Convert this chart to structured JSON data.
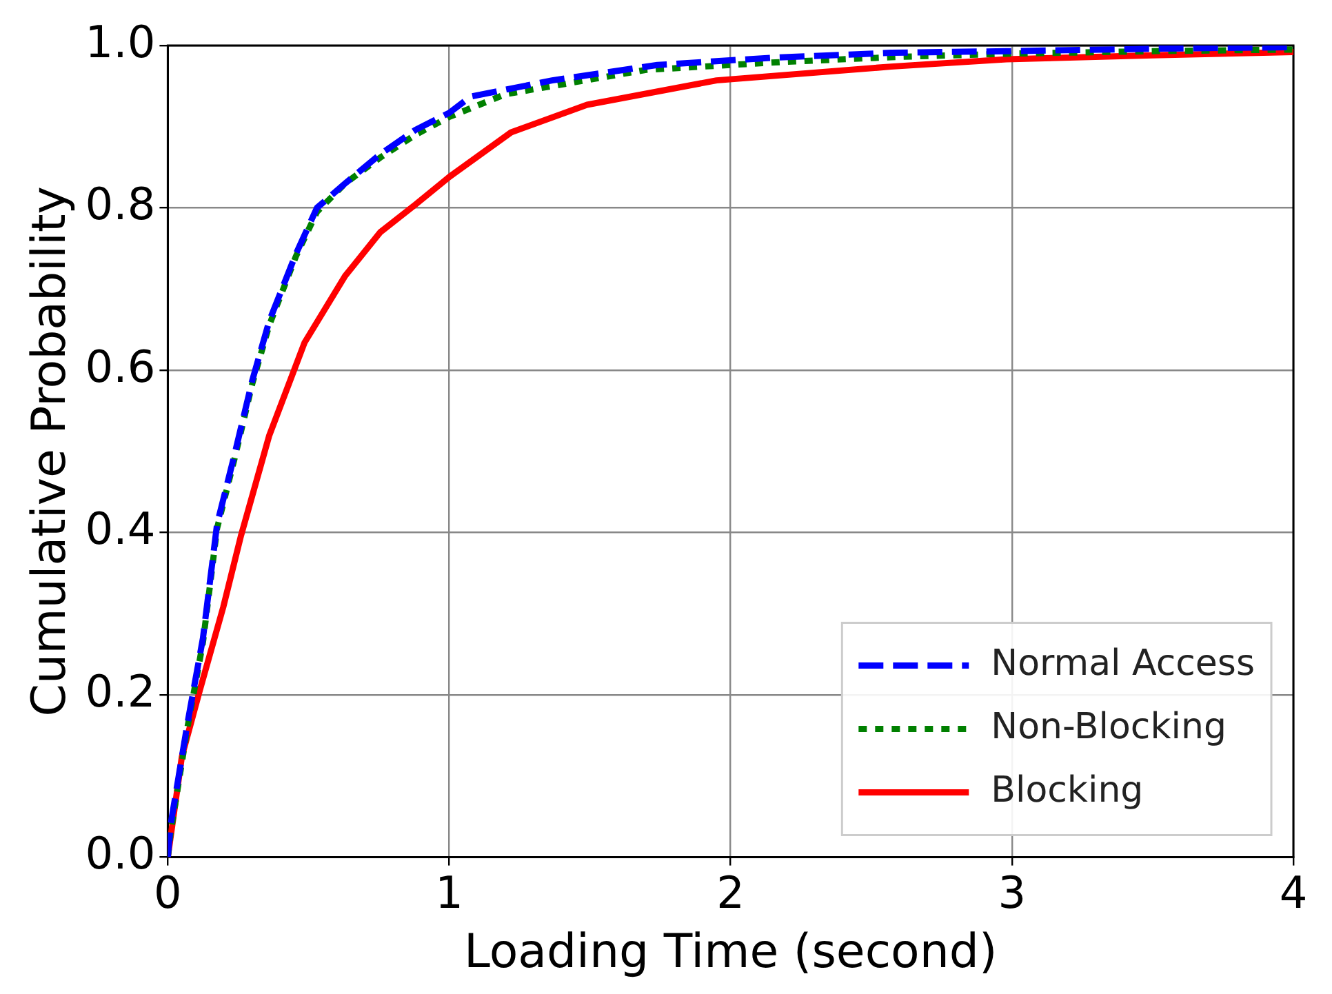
{
  "chart_data": {
    "type": "line",
    "xlabel": "Loading Time (second)",
    "ylabel": "Cumulative Probability",
    "xlim": [
      0,
      4
    ],
    "ylim": [
      0,
      1
    ],
    "xticks": [
      0,
      1,
      2,
      3,
      4
    ],
    "yticks": [
      {
        "value": 0,
        "label": "0.0"
      },
      {
        "value": 0.2,
        "label": "0.2"
      },
      {
        "value": 0.4,
        "label": "0.4"
      },
      {
        "value": 0.6,
        "label": "0.6"
      },
      {
        "value": 0.8,
        "label": "0.8"
      },
      {
        "value": 1,
        "label": "1.0"
      }
    ],
    "grid": true,
    "legend": "bottom right",
    "marker": "none",
    "series": [
      {
        "name": "Normal Access",
        "color": "#0000ff",
        "line_style": "dashed",
        "x": [
          0,
          0.01,
          0.07,
          0.125,
          0.175,
          0.24,
          0.3,
          0.36,
          0.455,
          0.53,
          0.63,
          0.755,
          0.88,
          1.0,
          1.076,
          1.366,
          1.74,
          2.15,
          2.57,
          2.98,
          3.5,
          4
        ],
        "values": [
          0,
          0.04,
          0.165,
          0.27,
          0.41,
          0.5,
          0.587,
          0.66,
          0.743,
          0.8,
          0.83,
          0.866,
          0.896,
          0.917,
          0.937,
          0.957,
          0.976,
          0.985,
          0.991,
          0.993,
          0.996,
          0.998
        ]
      },
      {
        "name": "Non-Blocking",
        "color": "#008000",
        "line_style": "dotted",
        "x": [
          0,
          0.01,
          0.07,
          0.125,
          0.175,
          0.24,
          0.3,
          0.36,
          0.455,
          0.53,
          0.63,
          0.755,
          0.88,
          1.0,
          1.2,
          1.7,
          2.2,
          2.6,
          3.0,
          3.5,
          4
        ],
        "values": [
          0,
          0.03,
          0.16,
          0.265,
          0.405,
          0.495,
          0.583,
          0.655,
          0.74,
          0.795,
          0.83,
          0.862,
          0.89,
          0.912,
          0.94,
          0.97,
          0.98,
          0.986,
          0.99,
          0.993,
          0.995
        ]
      },
      {
        "name": "Blocking",
        "color": "#ff0000",
        "line_style": "solid",
        "x": [
          0,
          0.05,
          0.114,
          0.197,
          0.26,
          0.36,
          0.486,
          0.63,
          0.755,
          0.88,
          1.0,
          1.22,
          1.49,
          1.95,
          2.57,
          2.98,
          3.5,
          4
        ],
        "values": [
          0,
          0.124,
          0.206,
          0.308,
          0.396,
          0.519,
          0.634,
          0.716,
          0.77,
          0.804,
          0.838,
          0.893,
          0.927,
          0.957,
          0.974,
          0.983,
          0.988,
          0.992
        ]
      }
    ]
  }
}
